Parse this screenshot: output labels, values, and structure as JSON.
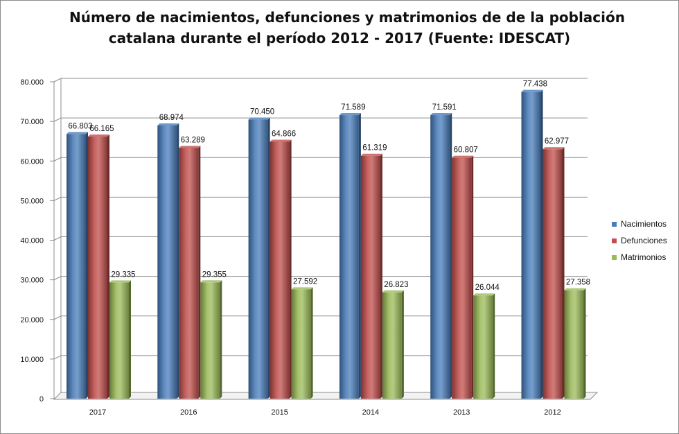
{
  "chart_data": {
    "type": "bar",
    "title_lines": [
      "Número de nacimientos, defunciones y matrimonios de de la población",
      "catalana durante el período 2012 - 2017 (Fuente: IDESCAT)"
    ],
    "categories": [
      "2017",
      "2016",
      "2015",
      "2014",
      "2013",
      "2012"
    ],
    "series": [
      {
        "name": "Nacimientos",
        "color": "#4a7ebb",
        "values": [
          66803,
          68974,
          70450,
          71589,
          71591,
          77438
        ],
        "labels": [
          "66.803",
          "68.974",
          "70.450",
          "71.589",
          "71.591",
          "77.438"
        ]
      },
      {
        "name": "Defunciones",
        "color": "#c0504d",
        "values": [
          66165,
          63289,
          64866,
          61319,
          60807,
          62977
        ],
        "labels": [
          "66.165",
          "63.289",
          "64.866",
          "61.319",
          "60.807",
          "62.977"
        ]
      },
      {
        "name": "Matrimonios",
        "color": "#9bbb59",
        "values": [
          29335,
          29355,
          27592,
          26823,
          26044,
          27358
        ],
        "labels": [
          "29.335",
          "29.355",
          "27.592",
          "26.823",
          "26.044",
          "27.358"
        ]
      }
    ],
    "y_ticks": [
      "0",
      "10.000",
      "20.000",
      "30.000",
      "40.000",
      "50.000",
      "60.000",
      "70.000",
      "80.000"
    ],
    "ylim": [
      0,
      80000
    ],
    "grid": true,
    "legend_position": "right"
  }
}
